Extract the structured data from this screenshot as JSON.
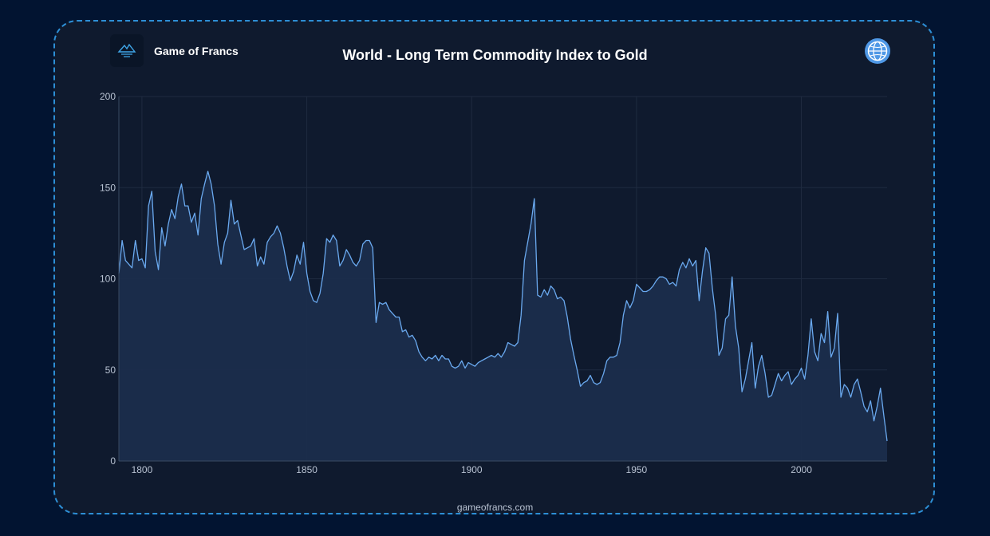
{
  "header": {
    "brand": "Game of Francs",
    "title": "World - Long Term Commodity Index to Gold",
    "logo_icon": "mountain-logo-icon",
    "globe_icon": "globe-icon"
  },
  "footer": {
    "site": "gameofrancs.com"
  },
  "colors": {
    "background": "#021431",
    "card": "#0f1a2e",
    "border": "#2d8fd6",
    "line": "#6aa9ef",
    "area": "#1b2d4c",
    "grid": "#1f2b40",
    "tick": "#b8c2d2"
  },
  "chart_data": {
    "type": "area",
    "title": "World - Long Term Commodity Index to Gold",
    "xlabel": "",
    "ylabel": "",
    "xlim": [
      1793,
      2026
    ],
    "ylim": [
      0,
      200
    ],
    "xticks": [
      1800,
      1850,
      1900,
      1950,
      2000
    ],
    "yticks": [
      0,
      50,
      100,
      150,
      200
    ],
    "grid": true,
    "series": [
      {
        "points": [
          [
            1793,
            103
          ],
          [
            1794,
            121
          ],
          [
            1795,
            110
          ],
          [
            1797,
            106
          ],
          [
            1798,
            121
          ],
          [
            1799,
            110
          ],
          [
            1800,
            111
          ],
          [
            1801,
            106
          ],
          [
            1802,
            140
          ],
          [
            1803,
            148
          ],
          [
            1804,
            115
          ],
          [
            1805,
            105
          ],
          [
            1806,
            128
          ],
          [
            1807,
            118
          ],
          [
            1808,
            130
          ],
          [
            1809,
            138
          ],
          [
            1810,
            133
          ],
          [
            1811,
            145
          ],
          [
            1812,
            152
          ],
          [
            1813,
            140
          ],
          [
            1814,
            140
          ],
          [
            1815,
            131
          ],
          [
            1816,
            136
          ],
          [
            1817,
            124
          ],
          [
            1818,
            144
          ],
          [
            1819,
            152
          ],
          [
            1820,
            159
          ],
          [
            1821,
            152
          ],
          [
            1822,
            140
          ],
          [
            1823,
            119
          ],
          [
            1824,
            108
          ],
          [
            1825,
            120
          ],
          [
            1826,
            125
          ],
          [
            1827,
            143
          ],
          [
            1828,
            130
          ],
          [
            1829,
            132
          ],
          [
            1830,
            124
          ],
          [
            1831,
            116
          ],
          [
            1832,
            117
          ],
          [
            1833,
            118
          ],
          [
            1834,
            122
          ],
          [
            1835,
            107
          ],
          [
            1836,
            112
          ],
          [
            1837,
            108
          ],
          [
            1838,
            120
          ],
          [
            1839,
            123
          ],
          [
            1840,
            125
          ],
          [
            1841,
            129
          ],
          [
            1842,
            125
          ],
          [
            1843,
            117
          ],
          [
            1844,
            107
          ],
          [
            1845,
            99
          ],
          [
            1846,
            104
          ],
          [
            1847,
            113
          ],
          [
            1848,
            108
          ],
          [
            1849,
            120
          ],
          [
            1850,
            103
          ],
          [
            1851,
            93
          ],
          [
            1852,
            88
          ],
          [
            1853,
            87
          ],
          [
            1854,
            92
          ],
          [
            1855,
            103
          ],
          [
            1856,
            122
          ],
          [
            1857,
            120
          ],
          [
            1858,
            124
          ],
          [
            1859,
            121
          ],
          [
            1860,
            107
          ],
          [
            1861,
            110
          ],
          [
            1862,
            116
          ],
          [
            1863,
            113
          ],
          [
            1864,
            109
          ],
          [
            1865,
            107
          ],
          [
            1866,
            110
          ],
          [
            1867,
            119
          ],
          [
            1868,
            121
          ],
          [
            1869,
            121
          ],
          [
            1870,
            117
          ],
          [
            1871,
            76
          ],
          [
            1872,
            87
          ],
          [
            1873,
            86
          ],
          [
            1874,
            87
          ],
          [
            1875,
            83
          ],
          [
            1876,
            81
          ],
          [
            1877,
            79
          ],
          [
            1878,
            79
          ],
          [
            1879,
            71
          ],
          [
            1880,
            72
          ],
          [
            1881,
            68
          ],
          [
            1882,
            69
          ],
          [
            1883,
            66
          ],
          [
            1884,
            60
          ],
          [
            1885,
            57
          ],
          [
            1886,
            55
          ],
          [
            1887,
            57
          ],
          [
            1888,
            56
          ],
          [
            1889,
            58
          ],
          [
            1890,
            55
          ],
          [
            1891,
            58
          ],
          [
            1892,
            56
          ],
          [
            1893,
            56
          ],
          [
            1894,
            52
          ],
          [
            1895,
            51
          ],
          [
            1896,
            52
          ],
          [
            1897,
            55
          ],
          [
            1898,
            51
          ],
          [
            1899,
            54
          ],
          [
            1900,
            53
          ],
          [
            1901,
            52
          ],
          [
            1902,
            54
          ],
          [
            1903,
            55
          ],
          [
            1904,
            56
          ],
          [
            1905,
            57
          ],
          [
            1906,
            58
          ],
          [
            1907,
            57
          ],
          [
            1908,
            59
          ],
          [
            1909,
            57
          ],
          [
            1910,
            60
          ],
          [
            1911,
            65
          ],
          [
            1912,
            64
          ],
          [
            1913,
            63
          ],
          [
            1914,
            65
          ],
          [
            1915,
            80
          ],
          [
            1916,
            110
          ],
          [
            1917,
            120
          ],
          [
            1918,
            130
          ],
          [
            1919,
            144
          ],
          [
            1920,
            91
          ],
          [
            1921,
            90
          ],
          [
            1922,
            94
          ],
          [
            1923,
            91
          ],
          [
            1924,
            96
          ],
          [
            1925,
            94
          ],
          [
            1926,
            89
          ],
          [
            1927,
            90
          ],
          [
            1928,
            88
          ],
          [
            1929,
            79
          ],
          [
            1930,
            67
          ],
          [
            1931,
            58
          ],
          [
            1932,
            50
          ],
          [
            1933,
            41
          ],
          [
            1934,
            43
          ],
          [
            1935,
            44
          ],
          [
            1936,
            47
          ],
          [
            1937,
            43
          ],
          [
            1938,
            42
          ],
          [
            1939,
            43
          ],
          [
            1940,
            48
          ],
          [
            1941,
            55
          ],
          [
            1942,
            57
          ],
          [
            1943,
            57
          ],
          [
            1944,
            58
          ],
          [
            1945,
            65
          ],
          [
            1946,
            80
          ],
          [
            1947,
            88
          ],
          [
            1948,
            84
          ],
          [
            1949,
            88
          ],
          [
            1950,
            97
          ],
          [
            1951,
            95
          ],
          [
            1952,
            93
          ],
          [
            1953,
            93
          ],
          [
            1954,
            94
          ],
          [
            1955,
            96
          ],
          [
            1956,
            99
          ],
          [
            1957,
            101
          ],
          [
            1958,
            101
          ],
          [
            1959,
            100
          ],
          [
            1960,
            97
          ],
          [
            1961,
            98
          ],
          [
            1962,
            96
          ],
          [
            1963,
            105
          ],
          [
            1964,
            109
          ],
          [
            1965,
            106
          ],
          [
            1966,
            111
          ],
          [
            1967,
            107
          ],
          [
            1968,
            110
          ],
          [
            1969,
            88
          ],
          [
            1970,
            104
          ],
          [
            1971,
            117
          ],
          [
            1972,
            114
          ],
          [
            1973,
            95
          ],
          [
            1974,
            80
          ],
          [
            1975,
            58
          ],
          [
            1976,
            62
          ],
          [
            1977,
            78
          ],
          [
            1978,
            80
          ],
          [
            1979,
            101
          ],
          [
            1980,
            74
          ],
          [
            1981,
            62
          ],
          [
            1982,
            38
          ],
          [
            1983,
            45
          ],
          [
            1984,
            55
          ],
          [
            1985,
            65
          ],
          [
            1986,
            40
          ],
          [
            1987,
            52
          ],
          [
            1988,
            58
          ],
          [
            1989,
            48
          ],
          [
            1990,
            35
          ],
          [
            1991,
            36
          ],
          [
            1992,
            42
          ],
          [
            1993,
            48
          ],
          [
            1994,
            44
          ],
          [
            1995,
            47
          ],
          [
            1996,
            49
          ],
          [
            1997,
            42
          ],
          [
            1998,
            45
          ],
          [
            1999,
            47
          ],
          [
            2000,
            51
          ],
          [
            2001,
            45
          ],
          [
            2002,
            58
          ],
          [
            2003,
            78
          ],
          [
            2004,
            60
          ],
          [
            2005,
            55
          ],
          [
            2006,
            70
          ],
          [
            2007,
            65
          ],
          [
            2008,
            82
          ],
          [
            2009,
            57
          ],
          [
            2010,
            62
          ],
          [
            2011,
            81
          ],
          [
            2012,
            35
          ],
          [
            2013,
            42
          ],
          [
            2014,
            40
          ],
          [
            2015,
            35
          ],
          [
            2016,
            42
          ],
          [
            2017,
            45
          ],
          [
            2018,
            38
          ],
          [
            2019,
            30
          ],
          [
            2020,
            27
          ],
          [
            2021,
            33
          ],
          [
            2022,
            22
          ],
          [
            2023,
            30
          ],
          [
            2024,
            40
          ],
          [
            2025,
            25
          ],
          [
            2026,
            11
          ]
        ]
      }
    ]
  }
}
